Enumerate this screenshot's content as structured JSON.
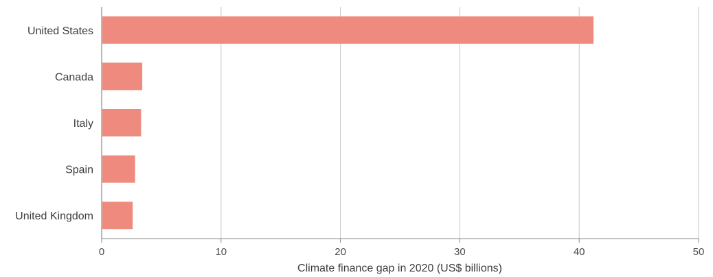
{
  "chart_data": {
    "type": "bar",
    "orientation": "horizontal",
    "categories": [
      "United States",
      "Canada",
      "Italy",
      "Spain",
      "United Kingdom"
    ],
    "values": [
      41.2,
      3.4,
      3.3,
      2.8,
      2.6
    ],
    "title": "",
    "xlabel": "Climate finance gap in 2020 (US$ billions)",
    "ylabel": "",
    "xlim": [
      0,
      50
    ],
    "xticks": [
      "0",
      "10",
      "20",
      "30",
      "40",
      "50"
    ],
    "grid": "vertical",
    "legend": "none",
    "bar_color": "#ee8b7e"
  }
}
